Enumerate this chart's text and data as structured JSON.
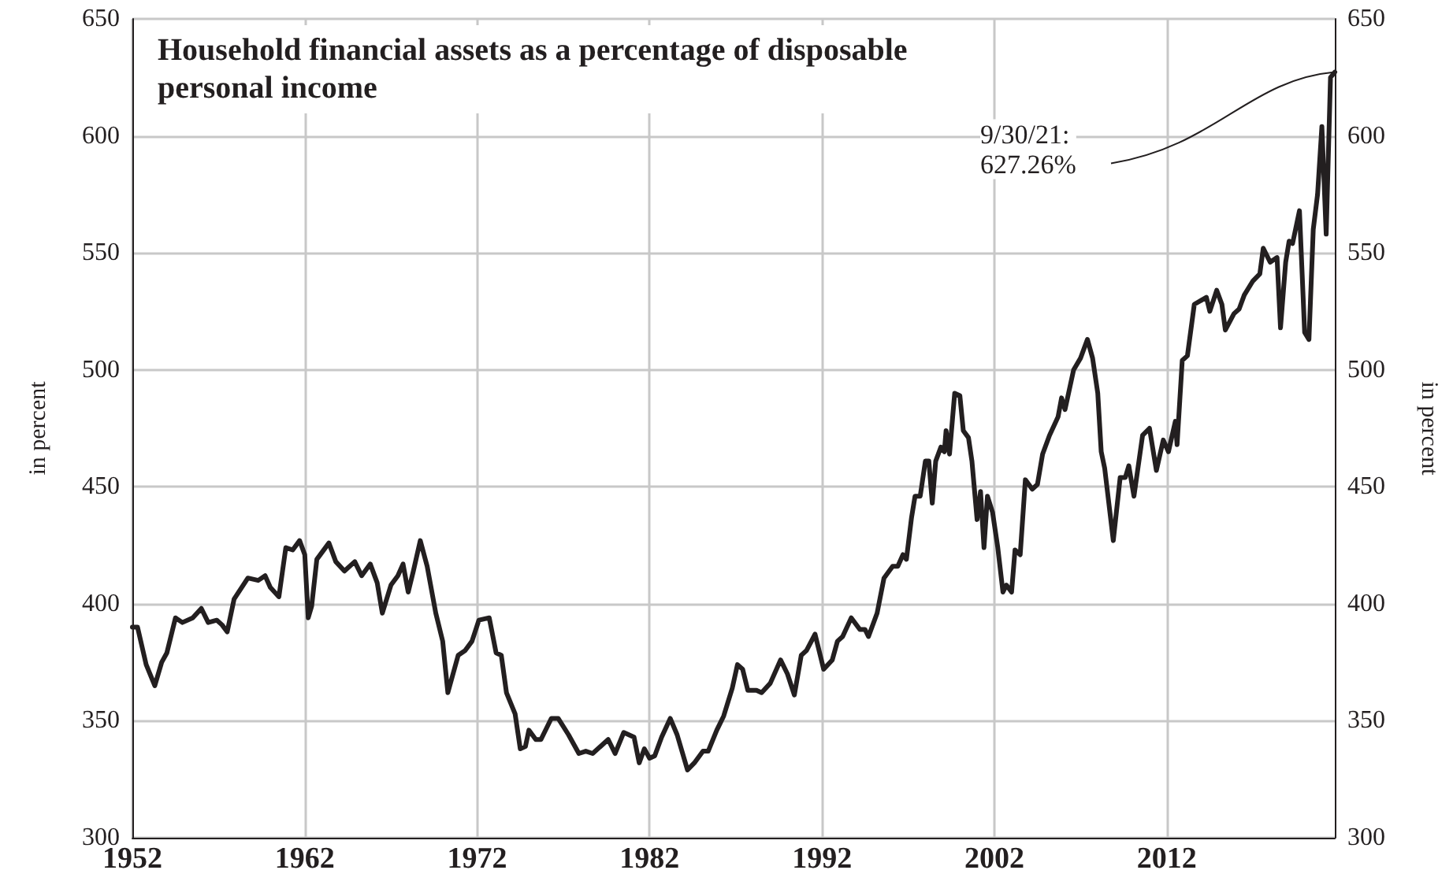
{
  "chart_data": {
    "type": "line",
    "title": "Household financial assets as a percentage of disposable\npersonal income",
    "ylabel": "in percent",
    "y2label": "in percent",
    "annotations": [
      {
        "text": "9/30/21:\n627.26%",
        "x": 2021.75,
        "y": 627.26
      }
    ],
    "xlim": [
      1952,
      2021.75
    ],
    "xticks": [
      1952,
      1962,
      1972,
      1982,
      1992,
      2002,
      2012
    ],
    "ylim": [
      300,
      650
    ],
    "yticks": [
      300,
      350,
      400,
      450,
      500,
      550,
      600,
      650
    ],
    "y2lim": [
      300,
      650
    ],
    "y2ticks": [
      300,
      350,
      400,
      450,
      500,
      550,
      600,
      650
    ],
    "grid": true,
    "marker": "none",
    "line_style": "solid",
    "series": [
      {
        "color": "#231f20",
        "x": [
          1952.0,
          1952.3,
          1952.8,
          1953.3,
          1953.7,
          1954.0,
          1954.5,
          1954.9,
          1955.5,
          1956.0,
          1956.4,
          1956.9,
          1957.2,
          1957.5,
          1957.9,
          1958.7,
          1959.3,
          1959.7,
          1960.0,
          1960.5,
          1960.9,
          1961.3,
          1961.7,
          1962.0,
          1962.2,
          1962.4,
          1962.7,
          1963.4,
          1963.8,
          1964.3,
          1964.9,
          1965.3,
          1965.8,
          1966.2,
          1966.5,
          1967.0,
          1967.4,
          1967.7,
          1968.0,
          1968.3,
          1968.7,
          1969.1,
          1969.6,
          1970.0,
          1970.3,
          1970.9,
          1971.3,
          1971.7,
          1972.1,
          1972.7,
          1973.1,
          1973.4,
          1973.7,
          1974.2,
          1974.5,
          1974.8,
          1975.0,
          1975.4,
          1975.7,
          1976.3,
          1976.7,
          1977.3,
          1977.9,
          1978.3,
          1978.7,
          1979.6,
          1980.0,
          1980.5,
          1981.1,
          1981.4,
          1981.7,
          1982.0,
          1982.3,
          1982.7,
          1983.2,
          1983.6,
          1984.2,
          1984.6,
          1985.1,
          1985.4,
          1985.9,
          1986.3,
          1986.8,
          1987.1,
          1987.4,
          1987.7,
          1988.2,
          1988.5,
          1989.0,
          1989.6,
          1990.0,
          1990.4,
          1990.8,
          1991.1,
          1991.6,
          1992.1,
          1992.6,
          1992.9,
          1993.2,
          1993.7,
          1994.2,
          1994.5,
          1994.7,
          1995.2,
          1995.6,
          1996.1,
          1996.4,
          1996.7,
          1996.9,
          1997.2,
          1997.4,
          1997.7,
          1998.0,
          1998.2,
          1998.4,
          1998.6,
          1998.9,
          1999.1,
          1999.2,
          1999.4,
          1999.7,
          2000.0,
          2000.2,
          2000.5,
          2000.7,
          2001.0,
          2001.2,
          2001.4,
          2001.6,
          2001.9,
          2002.2,
          2002.5,
          2002.7,
          2003.0,
          2003.2,
          2003.5,
          2003.8,
          2004.2,
          2004.5,
          2004.8,
          2005.2,
          2005.7,
          2005.9,
          2006.1,
          2006.6,
          2007.0,
          2007.4,
          2007.7,
          2008.0,
          2008.2,
          2008.4,
          2008.9,
          2009.3,
          2009.6,
          2009.8,
          2010.1,
          2010.6,
          2011.0,
          2011.4,
          2011.8,
          2012.1,
          2012.5,
          2012.6,
          2012.9,
          2013.2,
          2013.6,
          2014.3,
          2014.5,
          2014.9,
          2015.2,
          2015.4,
          2015.9,
          2016.2,
          2016.5,
          2017.0,
          2017.4,
          2017.6,
          2018.0,
          2018.4,
          2018.6,
          2018.9,
          2019.1,
          2019.3,
          2019.7,
          2020.0,
          2020.25,
          2020.5,
          2020.75,
          2021.0,
          2021.25,
          2021.5,
          2021.75
        ],
        "values": [
          390,
          390,
          374,
          365,
          375,
          379,
          394,
          392,
          394,
          398,
          392,
          393,
          391,
          388,
          402,
          411,
          410,
          412,
          407,
          403,
          424,
          423,
          427,
          421,
          394,
          399,
          419,
          426,
          418,
          414,
          418,
          412,
          417,
          409,
          396,
          408,
          412,
          417,
          405,
          414,
          427,
          416,
          396,
          384,
          362,
          378,
          380,
          384,
          393,
          394,
          379,
          378,
          362,
          353,
          338,
          339,
          346,
          342,
          342,
          351,
          351,
          344,
          336,
          337,
          336,
          342,
          336,
          345,
          343,
          332,
          338,
          334,
          335,
          343,
          351,
          344,
          329,
          332,
          337,
          337,
          346,
          352,
          364,
          374,
          372,
          363,
          363,
          362,
          366,
          376,
          370,
          361,
          378,
          380,
          387,
          372,
          376,
          384,
          386,
          394,
          389,
          389,
          386,
          396,
          411,
          416,
          416,
          421,
          419,
          437,
          446,
          446,
          461,
          461,
          443,
          461,
          467,
          465,
          474,
          464,
          490,
          489,
          474,
          471,
          461,
          436,
          448,
          424,
          446,
          439,
          424,
          405,
          408,
          405,
          423,
          421,
          453,
          449,
          451,
          464,
          472,
          480,
          488,
          483,
          500,
          505,
          513,
          505,
          490,
          465,
          458,
          427,
          454,
          454,
          459,
          446,
          472,
          475,
          457,
          470,
          465,
          478,
          468,
          504,
          506,
          528,
          531,
          525,
          534,
          528,
          517,
          524,
          526,
          532,
          538,
          541,
          552,
          546,
          548,
          518,
          546,
          555,
          554,
          568,
          516,
          513,
          560,
          575,
          604,
          558,
          625,
          627.26
        ]
      }
    ]
  }
}
